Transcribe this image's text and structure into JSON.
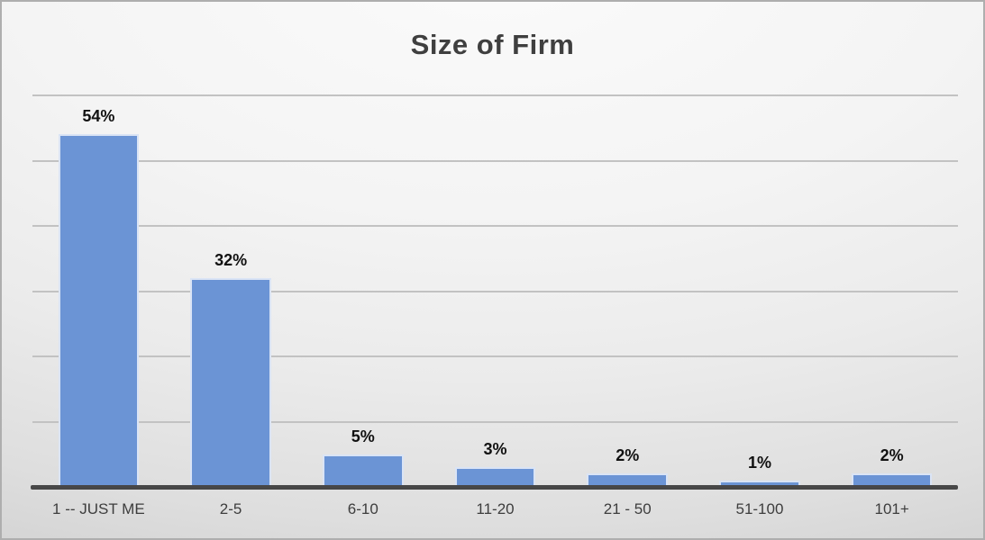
{
  "chart_data": {
    "type": "bar",
    "title": "Size of Firm",
    "categories": [
      "1 -- JUST ME",
      "2-5",
      "6-10",
      "11-20",
      "21 - 50",
      "51-100",
      "101+"
    ],
    "values": [
      54,
      32,
      5,
      3,
      2,
      1,
      2
    ],
    "value_labels": [
      "54%",
      "32%",
      "5%",
      "3%",
      "2%",
      "1%",
      "2%"
    ],
    "xlabel": "",
    "ylabel": "",
    "ylim": [
      0,
      60
    ],
    "gridline_step": 10,
    "grid": true,
    "legend": false,
    "y_tick_labels_visible": false,
    "colors": {
      "bar_fill": "#6b94d5",
      "bar_border": "rgba(255,255,255,0.75)",
      "gridline": "#c2c2c2",
      "axis_line": "#474747",
      "title_text": "#3f3f3f",
      "value_label_text": "#111111",
      "tick_label_text": "#3d3d3d",
      "background_top": "#fbfbfb",
      "background_bottom": "#c9c9c9",
      "frame_border": "#aeaeae"
    }
  }
}
